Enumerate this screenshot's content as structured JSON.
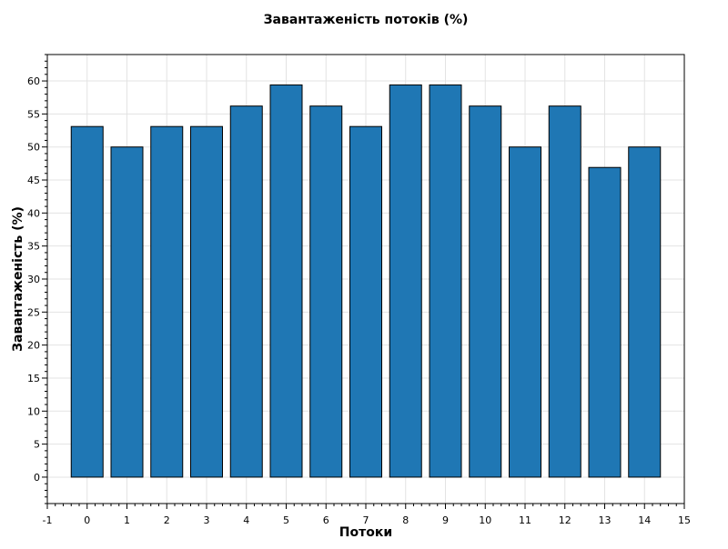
{
  "chart_data": {
    "type": "bar",
    "title": "Завантаженість потоків (%)",
    "xlabel": "Потоки",
    "ylabel": "Завантаженість (%)",
    "categories": [
      "0",
      "1",
      "2",
      "3",
      "4",
      "5",
      "6",
      "7",
      "8",
      "9",
      "10",
      "11",
      "12",
      "13",
      "14"
    ],
    "values": [
      53.1,
      50.0,
      53.1,
      53.1,
      56.2,
      59.4,
      56.2,
      53.1,
      59.4,
      59.4,
      56.2,
      50.0,
      56.2,
      46.9,
      50.0
    ],
    "xlim": [
      -1,
      15
    ],
    "ylim": [
      -4,
      64
    ],
    "xticks": [
      "-1",
      "0",
      "1",
      "2",
      "3",
      "4",
      "5",
      "6",
      "7",
      "8",
      "9",
      "10",
      "11",
      "12",
      "13",
      "14",
      "15"
    ],
    "yticks": [
      "0",
      "5",
      "10",
      "15",
      "20",
      "25",
      "30",
      "35",
      "40",
      "45",
      "50",
      "55",
      "60"
    ],
    "grid": true,
    "colors": {
      "bar": "#1f77b4",
      "edge": "#000000"
    }
  }
}
